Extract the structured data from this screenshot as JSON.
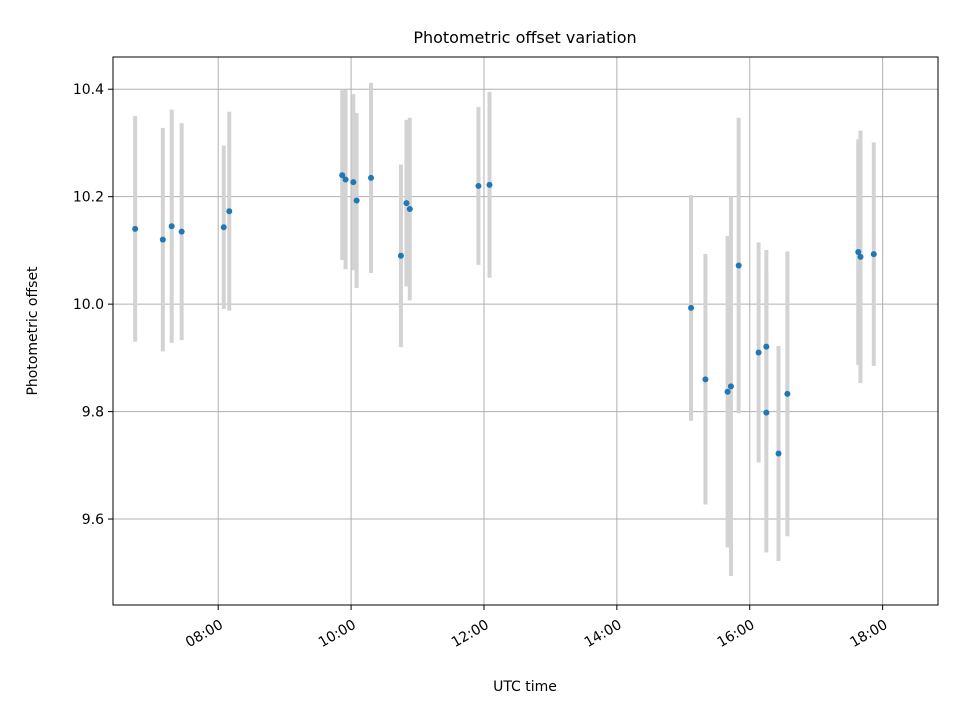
{
  "chart_data": {
    "type": "scatter",
    "title": "Photometric offset variation",
    "xlabel": "UTC time",
    "ylabel": "Photometric offset",
    "xlim": [
      "06:25",
      "18:50"
    ],
    "ylim": [
      9.44,
      10.46
    ],
    "x_ticks": [
      "08:00",
      "10:00",
      "12:00",
      "14:00",
      "16:00",
      "18:00"
    ],
    "y_ticks": [
      9.6,
      9.8,
      10.0,
      10.2,
      10.4
    ],
    "grid": true,
    "colors": {
      "point": "#1f77b4",
      "errorbar": "#d3d3d3",
      "grid": "#b0b0b0"
    },
    "series": [
      {
        "points": [
          {
            "x": "06:45",
            "y": 10.14,
            "err": 0.21
          },
          {
            "x": "07:10",
            "y": 10.12,
            "err": 0.208
          },
          {
            "x": "07:18",
            "y": 10.145,
            "err": 0.217
          },
          {
            "x": "07:27",
            "y": 10.135,
            "err": 0.202
          },
          {
            "x": "08:05",
            "y": 10.143,
            "err": 0.152
          },
          {
            "x": "08:10",
            "y": 10.173,
            "err": 0.185
          },
          {
            "x": "09:52",
            "y": 10.24,
            "err": 0.158
          },
          {
            "x": "09:55",
            "y": 10.232,
            "err": 0.167
          },
          {
            "x": "10:02",
            "y": 10.227,
            "err": 0.164
          },
          {
            "x": "10:05",
            "y": 10.193,
            "err": 0.163
          },
          {
            "x": "10:18",
            "y": 10.235,
            "err": 0.177
          },
          {
            "x": "10:45",
            "y": 10.09,
            "err": 0.17
          },
          {
            "x": "10:50",
            "y": 10.188,
            "err": 0.155
          },
          {
            "x": "10:53",
            "y": 10.177,
            "err": 0.17
          },
          {
            "x": "11:55",
            "y": 10.22,
            "err": 0.147
          },
          {
            "x": "12:05",
            "y": 10.222,
            "err": 0.173
          },
          {
            "x": "15:07",
            "y": 9.993,
            "err": 0.21
          },
          {
            "x": "15:20",
            "y": 9.86,
            "err": 0.233
          },
          {
            "x": "15:40",
            "y": 9.837,
            "err": 0.29
          },
          {
            "x": "15:43",
            "y": 9.847,
            "err": 0.353
          },
          {
            "x": "15:50",
            "y": 10.072,
            "err": 0.275
          },
          {
            "x": "16:08",
            "y": 9.91,
            "err": 0.205
          },
          {
            "x": "16:15",
            "y": 9.921,
            "err": 0.18
          },
          {
            "x": "16:15",
            "y": 9.798,
            "err": 0.26
          },
          {
            "x": "16:26",
            "y": 9.722,
            "err": 0.2
          },
          {
            "x": "16:34",
            "y": 9.833,
            "err": 0.265
          },
          {
            "x": "17:38",
            "y": 10.097,
            "err": 0.21
          },
          {
            "x": "17:40",
            "y": 10.088,
            "err": 0.235
          },
          {
            "x": "17:52",
            "y": 10.093,
            "err": 0.208
          }
        ]
      }
    ]
  }
}
